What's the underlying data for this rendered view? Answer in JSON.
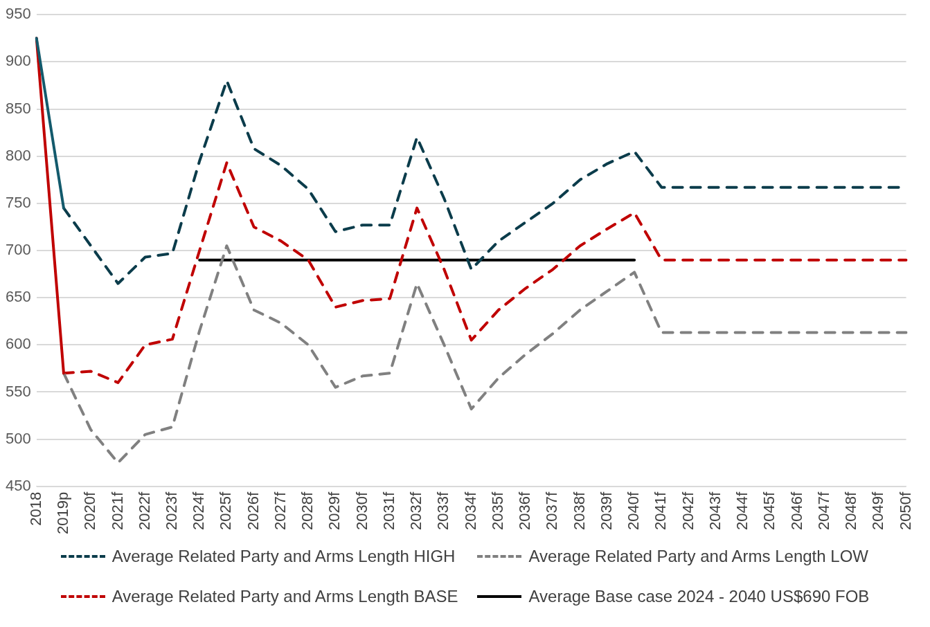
{
  "chart_data": {
    "type": "line",
    "categories": [
      "2018",
      "2019p",
      "2020f",
      "2021f",
      "2022f",
      "2023f",
      "2024f",
      "2025f",
      "2026f",
      "2027f",
      "2028f",
      "2029f",
      "2030f",
      "2031f",
      "2032f",
      "2033f",
      "2034f",
      "2035f",
      "2036f",
      "2037f",
      "2038f",
      "2039f",
      "2040f",
      "2041f",
      "2042f",
      "2043f",
      "2044f",
      "2045f",
      "2046f",
      "2047f",
      "2048f",
      "2049f",
      "2050f"
    ],
    "series": [
      {
        "color": "#135a6c",
        "line_style": "solid",
        "values": [
          925,
          745,
          null,
          null,
          null,
          null,
          null,
          null,
          null,
          null,
          null,
          null,
          null,
          null,
          null,
          null,
          null,
          null,
          null,
          null,
          null,
          null,
          null,
          null,
          null,
          null,
          null,
          null,
          null,
          null,
          null,
          null,
          null
        ]
      },
      {
        "color": "#c00000",
        "line_style": "solid",
        "values": [
          925,
          570,
          null,
          null,
          null,
          null,
          null,
          null,
          null,
          null,
          null,
          null,
          null,
          null,
          null,
          null,
          null,
          null,
          null,
          null,
          null,
          null,
          null,
          null,
          null,
          null,
          null,
          null,
          null,
          null,
          null,
          null,
          null
        ]
      },
      {
        "name": "Average Related Party and Arms Length HIGH",
        "color": "#0b3c4b",
        "line_style": "dashed",
        "values": [
          null,
          745,
          705,
          665,
          693,
          697,
          795,
          880,
          808,
          790,
          765,
          720,
          727,
          727,
          820,
          755,
          680,
          710,
          730,
          750,
          775,
          792,
          805,
          767,
          767,
          767,
          767,
          767,
          767,
          767,
          767,
          767,
          767
        ]
      },
      {
        "name": "Average Related Party and Arms Length LOW",
        "color": "#808080",
        "line_style": "dashed",
        "values": [
          null,
          570,
          510,
          475,
          505,
          513,
          615,
          705,
          637,
          623,
          600,
          555,
          567,
          570,
          665,
          600,
          532,
          565,
          590,
          612,
          637,
          657,
          677,
          613,
          613,
          613,
          613,
          613,
          613,
          613,
          613,
          613,
          613
        ]
      },
      {
        "name": "Average Related Party and Arms Length BASE",
        "color": "#c00000",
        "line_style": "dashed",
        "values": [
          null,
          570,
          572,
          560,
          600,
          606,
          700,
          793,
          725,
          710,
          690,
          640,
          647,
          649,
          745,
          680,
          605,
          637,
          660,
          680,
          705,
          723,
          740,
          690,
          690,
          690,
          690,
          690,
          690,
          690,
          690,
          690,
          690
        ]
      },
      {
        "name": "Average Base case 2024 - 2040 US$690 FOB",
        "color": "#000000",
        "line_style": "solid",
        "values": [
          null,
          null,
          null,
          null,
          null,
          null,
          690,
          690,
          690,
          690,
          690,
          690,
          690,
          690,
          690,
          690,
          690,
          690,
          690,
          690,
          690,
          690,
          690,
          null,
          null,
          null,
          null,
          null,
          null,
          null,
          null,
          null,
          null
        ]
      }
    ],
    "ylim": [
      450,
      950
    ],
    "yticks": [
      450,
      500,
      550,
      600,
      650,
      700,
      750,
      800,
      850,
      900,
      950
    ],
    "grid": "y",
    "legend": "bottom",
    "marker": "none"
  }
}
